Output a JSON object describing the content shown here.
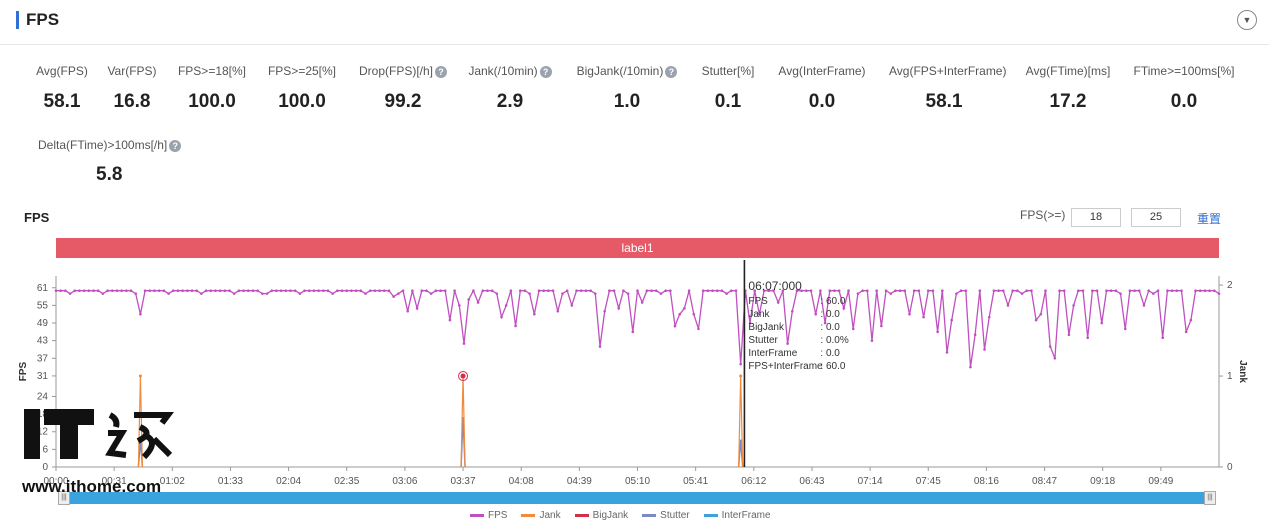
{
  "header": {
    "title": "FPS"
  },
  "metrics": [
    {
      "label": "Avg(FPS)",
      "value": "58.1",
      "help": false
    },
    {
      "label": "Var(FPS)",
      "value": "16.8",
      "help": false
    },
    {
      "label": "FPS>=18[%]",
      "value": "100.0",
      "help": false
    },
    {
      "label": "FPS>=25[%]",
      "value": "100.0",
      "help": false
    },
    {
      "label": "Drop(FPS)[/h]",
      "value": "99.2",
      "help": true
    },
    {
      "label": "Jank(/10min)",
      "value": "2.9",
      "help": true
    },
    {
      "label": "BigJank(/10min)",
      "value": "1.0",
      "help": true
    },
    {
      "label": "Stutter[%]",
      "value": "0.1",
      "help": false
    },
    {
      "label": "Avg(InterFrame)",
      "value": "0.0",
      "help": false
    },
    {
      "label": "Avg(FPS+InterFrame)",
      "value": "58.1",
      "help": false
    },
    {
      "label": "Avg(FTime)[ms]",
      "value": "17.2",
      "help": false
    },
    {
      "label": "FTime>=100ms[%]",
      "value": "0.0",
      "help": false
    },
    {
      "label": "Delta(FTime)>100ms[/h]",
      "value": "5.8",
      "help": true
    }
  ],
  "chart_section": {
    "title": "FPS",
    "threshold_label": "FPS(>=)",
    "threshold_1": "18",
    "threshold_2": "25",
    "reset_label": "重置",
    "band_label": "label1"
  },
  "tooltip": {
    "time": "06:07:000",
    "rows": [
      {
        "k": "FPS",
        "v": ": 60.0"
      },
      {
        "k": "Jank",
        "v": ": 0.0"
      },
      {
        "k": "BigJank",
        "v": ": 0.0"
      },
      {
        "k": "Stutter",
        "v": ": 0.0%"
      },
      {
        "k": "InterFrame",
        "v": ": 0.0"
      },
      {
        "k": "FPS+InterFrame",
        "v": ": 60.0"
      }
    ]
  },
  "watermark": {
    "logo": "IT之家",
    "url": "www.ithome.com"
  },
  "colors": {
    "fps": "#c050c0",
    "jank": "#f08a3c",
    "bigjank": "#d0304a",
    "stutter": "#7a8ac8",
    "interframe": "#3aa3dd",
    "band": "#e65a68"
  },
  "chart_data": {
    "type": "line",
    "ylabel": "FPS",
    "y2label": "Jank",
    "yticks": [
      0,
      6,
      12,
      18,
      24,
      31,
      37,
      43,
      49,
      55,
      61
    ],
    "y2ticks": [
      0,
      1,
      2
    ],
    "ylim": [
      0,
      65
    ],
    "y2lim": [
      0,
      2.1
    ],
    "xticks": [
      "00:00",
      "00:31",
      "01:02",
      "01:33",
      "02:04",
      "02:35",
      "03:06",
      "03:37",
      "04:08",
      "04:39",
      "05:10",
      "05:41",
      "06:12",
      "06:43",
      "07:14",
      "07:45",
      "08:16",
      "08:47",
      "09:18",
      "09:49"
    ],
    "xrange_s": [
      0,
      620
    ],
    "cursor_s": 367,
    "legend": [
      "FPS",
      "Jank",
      "BigJank",
      "Stutter",
      "InterFrame"
    ],
    "fps_baseline": 60,
    "fps_dips": [
      [
        45,
        52
      ],
      [
        110,
        59
      ],
      [
        180,
        58
      ],
      [
        188,
        53
      ],
      [
        193,
        54
      ],
      [
        210,
        50
      ],
      [
        215,
        55
      ],
      [
        215,
        55
      ],
      [
        217,
        42
      ],
      [
        219,
        57
      ],
      [
        225,
        56
      ],
      [
        237,
        51
      ],
      [
        240,
        55
      ],
      [
        245,
        48
      ],
      [
        255,
        52
      ],
      [
        268,
        53
      ],
      [
        275,
        55
      ],
      [
        291,
        41
      ],
      [
        293,
        53
      ],
      [
        300,
        54
      ],
      [
        307,
        46
      ],
      [
        313,
        56
      ],
      [
        330,
        48
      ],
      [
        332,
        52
      ],
      [
        335,
        54
      ],
      [
        339,
        52
      ],
      [
        343,
        47
      ],
      [
        366,
        35
      ],
      [
        370,
        49
      ],
      [
        375,
        52
      ],
      [
        384,
        56
      ],
      [
        390,
        42
      ],
      [
        393,
        53
      ],
      [
        405,
        52
      ],
      [
        410,
        49
      ],
      [
        421,
        54
      ],
      [
        425,
        47
      ],
      [
        434,
        43
      ],
      [
        440,
        48
      ],
      [
        455,
        52
      ],
      [
        462,
        51
      ],
      [
        470,
        46
      ],
      [
        475,
        39
      ],
      [
        478,
        50
      ],
      [
        487,
        34
      ],
      [
        490,
        45
      ],
      [
        495,
        40
      ],
      [
        498,
        51
      ],
      [
        508,
        55
      ],
      [
        522,
        50
      ],
      [
        525,
        52
      ],
      [
        530,
        41
      ],
      [
        533,
        37
      ],
      [
        540,
        45
      ],
      [
        543,
        55
      ],
      [
        550,
        44
      ],
      [
        558,
        49
      ],
      [
        570,
        47
      ],
      [
        580,
        55
      ],
      [
        590,
        44
      ],
      [
        603,
        46
      ],
      [
        606,
        50
      ]
    ],
    "jank_events": [
      {
        "t": 45,
        "jank": 1.0,
        "bigjank": 0
      },
      {
        "t": 217,
        "jank": 1.0,
        "bigjank": 1.0
      },
      {
        "t": 365,
        "jank": 1.0,
        "bigjank": 0
      }
    ],
    "stutter_events": [
      {
        "t": 45,
        "value": 0.3
      },
      {
        "t": 217,
        "value": 0.55
      },
      {
        "t": 365,
        "value": 0.3
      }
    ]
  }
}
